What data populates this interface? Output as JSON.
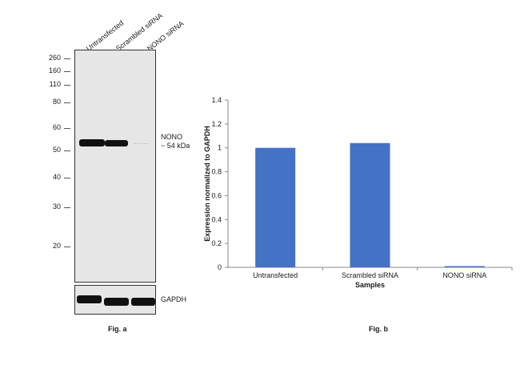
{
  "figure_a": {
    "lanes": [
      "Untransfected",
      "Scrambled siRNA",
      "NONO siRNA"
    ],
    "mw_markers": [
      "260",
      "160",
      "110",
      "80",
      "60",
      "50",
      "40",
      "30",
      "20"
    ],
    "target_label_line1": "NONO",
    "target_label_line2": "~ 54 kDa",
    "loading_control_label": "GAPDH",
    "caption": "Fig. a"
  },
  "figure_b": {
    "caption": "Fig. b"
  },
  "chart_data": {
    "type": "bar",
    "categories": [
      "Untransfected",
      "Scrambled siRNA",
      "NONO siRNA"
    ],
    "values": [
      1.0,
      1.04,
      0.01
    ],
    "xlabel": "Samples",
    "ylabel": "Expression normalized to GAPDH",
    "ylim": [
      0,
      1.4
    ],
    "yticks": [
      "0",
      "0.2",
      "0.4",
      "0.6",
      "0.8",
      "1",
      "1.2",
      "1.4"
    ],
    "bar_color": "#4472c4",
    "grid": false
  }
}
